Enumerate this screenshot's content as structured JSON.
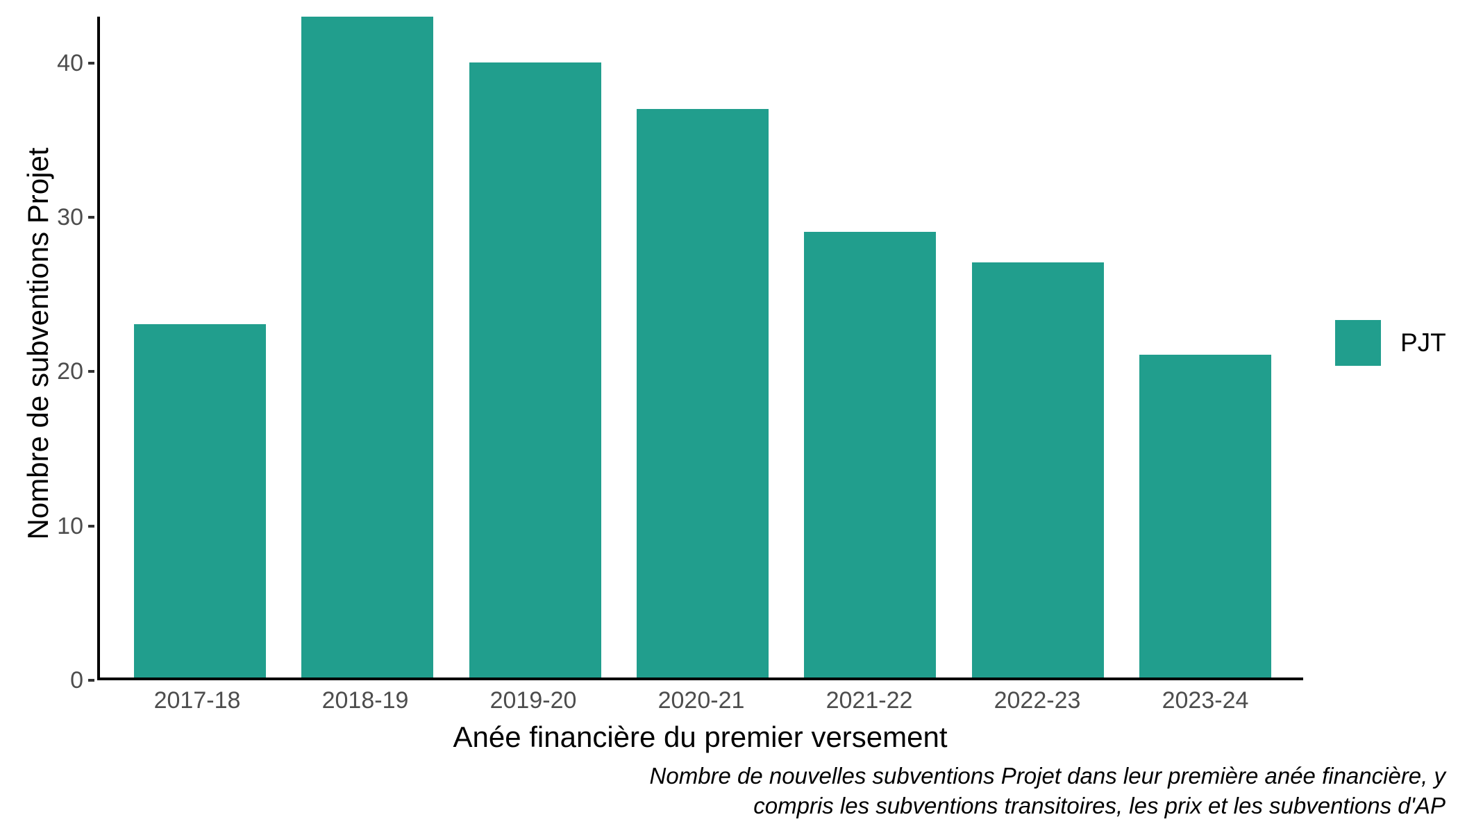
{
  "chart_data": {
    "type": "bar",
    "categories": [
      "2017-18",
      "2018-19",
      "2019-20",
      "2020-21",
      "2021-22",
      "2022-23",
      "2023-24"
    ],
    "series": [
      {
        "name": "PJT",
        "values": [
          23,
          43,
          40,
          37,
          29,
          27,
          21
        ]
      }
    ],
    "title": "",
    "xlabel": "Anée financière du premier versement",
    "ylabel": "Nombre de subventions Projet",
    "ylim": [
      0,
      43
    ],
    "yticks": [
      0,
      10,
      20,
      30,
      40
    ],
    "grid": "off",
    "bar_color": "#219e8d",
    "legend": {
      "position": "right",
      "entries": [
        {
          "label": "PJT",
          "color": "#219e8d"
        }
      ]
    },
    "caption_lines": [
      "Nombre de nouvelles subventions Projet dans leur première anée financière, y",
      "compris les subventions transitoires, les prix et les subventions d'AP"
    ]
  },
  "colors": {
    "accent": "#219e8d",
    "axis_text": "#4d4d4d",
    "axis_line": "#000000",
    "background": "#ffffff"
  }
}
